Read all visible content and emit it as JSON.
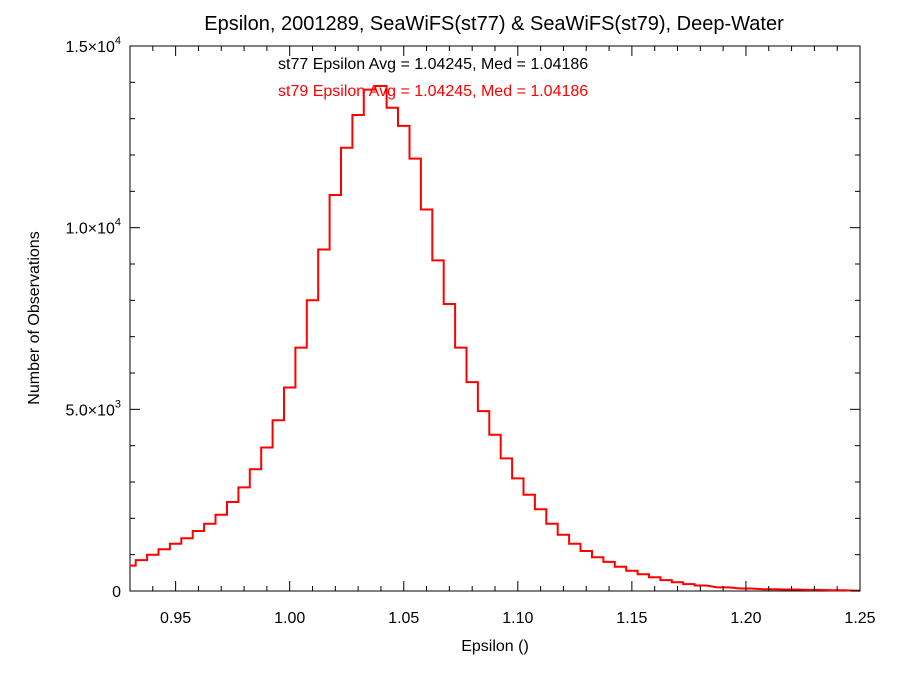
{
  "chart_data": {
    "type": "line",
    "step": true,
    "title": "Epsilon, 2001289, SeaWiFS(st77) & SeaWiFS(st79), Deep-Water",
    "xlabel": "Epsilon ()",
    "ylabel": "Number of Observations",
    "xlim": [
      0.93,
      1.25
    ],
    "ylim": [
      0,
      15000
    ],
    "grid": false,
    "x_ticks": [
      {
        "value": 0.95,
        "label": "0.95"
      },
      {
        "value": 1.0,
        "label": "1.00"
      },
      {
        "value": 1.05,
        "label": "1.05"
      },
      {
        "value": 1.1,
        "label": "1.10"
      },
      {
        "value": 1.15,
        "label": "1.15"
      },
      {
        "value": 1.2,
        "label": "1.20"
      },
      {
        "value": 1.25,
        "label": "1.25"
      }
    ],
    "y_ticks": [
      {
        "value": 0,
        "mantissa": "0",
        "exponent": ""
      },
      {
        "value": 5000,
        "mantissa": "5.0×10",
        "exponent": "3"
      },
      {
        "value": 10000,
        "mantissa": "1.0×10",
        "exponent": "4"
      },
      {
        "value": 15000,
        "mantissa": "1.5×10",
        "exponent": "4"
      }
    ],
    "annotations": [
      {
        "text": "st77 Epsilon Avg = 1.04245, Med = 1.04186",
        "color": "#000000"
      },
      {
        "text": "st79 Epsilon Avg = 1.04245, Med = 1.04186",
        "color": "#ff0000"
      }
    ],
    "series": [
      {
        "color": "#ff0000",
        "overlaps_series": "st77",
        "x": [
          0.93,
          0.935,
          0.94,
          0.945,
          0.95,
          0.955,
          0.96,
          0.965,
          0.97,
          0.975,
          0.98,
          0.985,
          0.99,
          0.995,
          1.0,
          1.005,
          1.01,
          1.015,
          1.02,
          1.025,
          1.03,
          1.035,
          1.04,
          1.045,
          1.05,
          1.055,
          1.06,
          1.065,
          1.07,
          1.075,
          1.08,
          1.085,
          1.09,
          1.095,
          1.1,
          1.105,
          1.11,
          1.115,
          1.12,
          1.125,
          1.13,
          1.135,
          1.14,
          1.145,
          1.15,
          1.155,
          1.16,
          1.165,
          1.17,
          1.175,
          1.18,
          1.19,
          1.2,
          1.21,
          1.22,
          1.23,
          1.24,
          1.25
        ],
        "y": [
          700,
          850,
          1000,
          1150,
          1300,
          1450,
          1650,
          1850,
          2100,
          2450,
          2850,
          3350,
          3950,
          4700,
          5600,
          6700,
          8000,
          9400,
          10900,
          12200,
          13100,
          13800,
          13900,
          13300,
          12800,
          11900,
          10500,
          9100,
          7900,
          6700,
          5750,
          4950,
          4300,
          3650,
          3100,
          2650,
          2250,
          1850,
          1550,
          1300,
          1100,
          930,
          800,
          670,
          560,
          460,
          380,
          300,
          240,
          190,
          150,
          100,
          70,
          50,
          40,
          30,
          20,
          10
        ]
      }
    ]
  }
}
